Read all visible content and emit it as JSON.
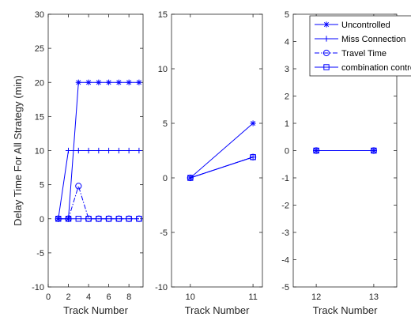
{
  "chart_data": [
    {
      "type": "line",
      "xlabel": "Track Number",
      "ylabel": "Delay Time For All Strategy      (min)",
      "xlim": [
        0,
        9.4
      ],
      "ylim": [
        -10,
        30
      ],
      "xticks": [
        0,
        2,
        4,
        6,
        8
      ],
      "yticks": [
        -10,
        -5,
        0,
        5,
        10,
        15,
        20,
        25,
        30
      ],
      "grid": false,
      "series": [
        {
          "name": "Uncontrolled",
          "marker": "star",
          "style": "solid",
          "x": [
            1,
            2,
            3,
            4,
            5,
            6,
            7,
            8,
            9
          ],
          "y": [
            0,
            0,
            20,
            20,
            20,
            20,
            20,
            20,
            20
          ]
        },
        {
          "name": "Miss Connection",
          "marker": "plus",
          "style": "solid",
          "x": [
            1,
            2,
            3,
            4,
            5,
            6,
            7,
            8,
            9
          ],
          "y": [
            0,
            10,
            10,
            10,
            10,
            10,
            10,
            10,
            10
          ]
        },
        {
          "name": "Travel Time",
          "marker": "circle",
          "style": "dashdot",
          "x": [
            1,
            2,
            3,
            4,
            5,
            6,
            7,
            8,
            9
          ],
          "y": [
            0,
            0,
            4.8,
            0,
            0,
            0,
            0,
            0,
            0
          ]
        },
        {
          "name": "combination control",
          "marker": "square",
          "style": "solid",
          "x": [
            1,
            2,
            3,
            4,
            5,
            6,
            7,
            8,
            9
          ],
          "y": [
            0,
            0,
            0,
            0,
            0,
            0,
            0,
            0,
            0
          ]
        }
      ]
    },
    {
      "type": "line",
      "xlabel": "Track Number",
      "ylabel": "",
      "xlim": [
        9.7,
        11.15
      ],
      "ylim": [
        -10,
        15
      ],
      "xticks": [
        10,
        11
      ],
      "yticks": [
        -10,
        -5,
        0,
        5,
        10,
        15
      ],
      "grid": false,
      "series": [
        {
          "name": "Uncontrolled",
          "marker": "star",
          "style": "solid",
          "x": [
            10,
            11
          ],
          "y": [
            0,
            5
          ]
        },
        {
          "name": "Miss Connection",
          "marker": "plus",
          "style": "solid",
          "x": [
            10,
            11
          ],
          "y": [
            0,
            1.9
          ]
        },
        {
          "name": "Travel Time",
          "marker": "circle",
          "style": "dashdot",
          "x": [
            10,
            11
          ],
          "y": [
            0,
            1.9
          ]
        },
        {
          "name": "combination control",
          "marker": "square",
          "style": "solid",
          "x": [
            10,
            11
          ],
          "y": [
            0,
            1.9
          ]
        }
      ]
    },
    {
      "type": "line",
      "xlabel": "Track Number",
      "ylabel": "",
      "xlim": [
        11.6,
        13.4
      ],
      "ylim": [
        -5,
        5
      ],
      "xticks": [
        12,
        13
      ],
      "yticks": [
        -5,
        -4,
        -3,
        -2,
        -1,
        0,
        1,
        2,
        3,
        4,
        5
      ],
      "grid": false,
      "legend": {
        "placement": "top-right",
        "entries": [
          "Uncontrolled",
          "Miss Connection",
          "Travel Time",
          "combination control"
        ]
      },
      "series": [
        {
          "name": "Uncontrolled",
          "marker": "star",
          "style": "solid",
          "x": [
            12,
            13
          ],
          "y": [
            0,
            0
          ]
        },
        {
          "name": "Miss Connection",
          "marker": "plus",
          "style": "solid",
          "x": [
            12,
            13
          ],
          "y": [
            0,
            0
          ]
        },
        {
          "name": "Travel Time",
          "marker": "circle",
          "style": "dashdot",
          "x": [
            12,
            13
          ],
          "y": [
            0,
            0
          ]
        },
        {
          "name": "combination control",
          "marker": "square",
          "style": "solid",
          "x": [
            12,
            13
          ],
          "y": [
            0,
            0
          ]
        }
      ]
    }
  ],
  "colors": {
    "line": "#0000ff",
    "axis": "#262626",
    "background": "#ffffff"
  }
}
